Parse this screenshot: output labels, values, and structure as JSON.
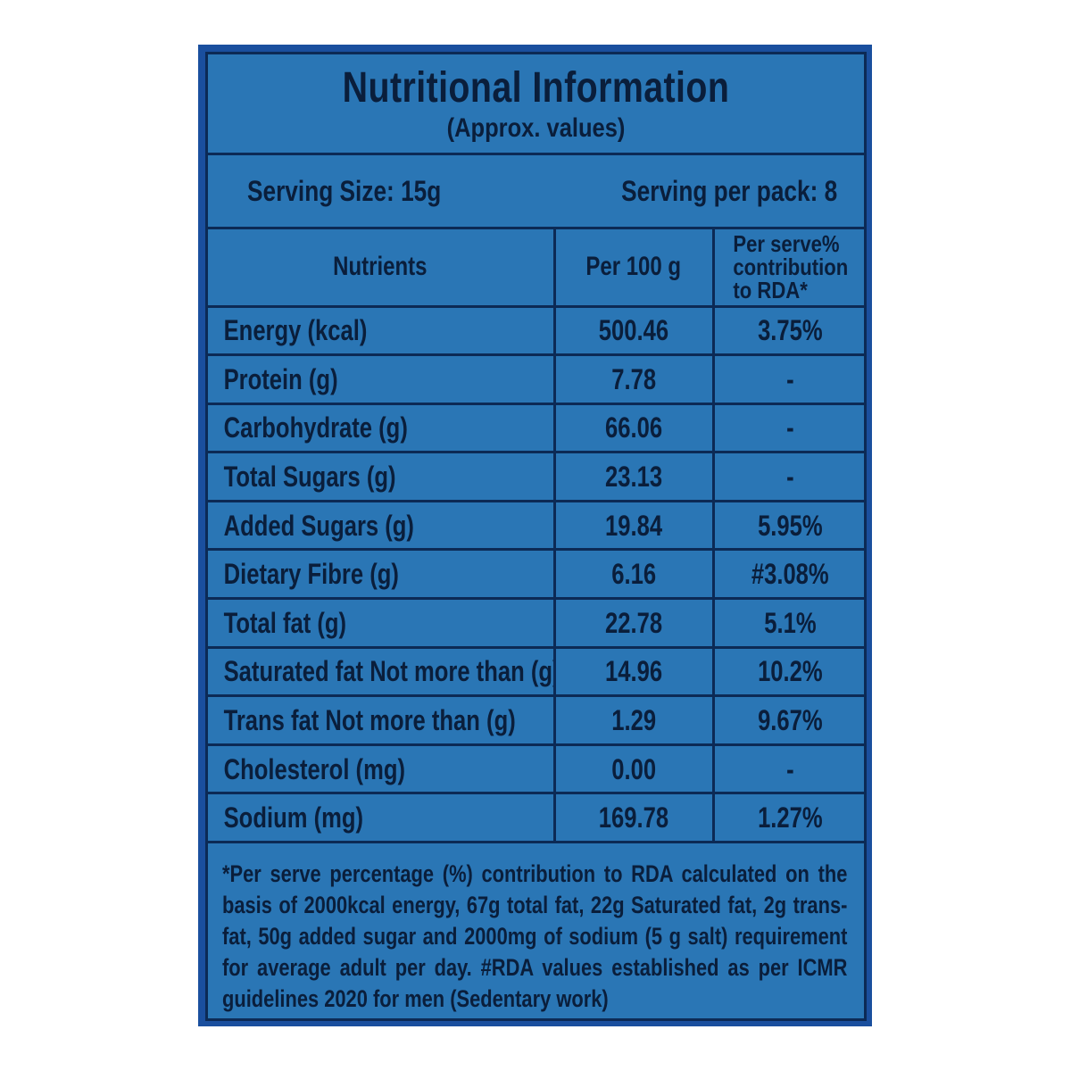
{
  "label": {
    "title": "Nutritional Information",
    "subtitle": "(Approx. values)",
    "serving_size": "Serving Size: 15g",
    "serving_per_pack": "Serving per pack: 8",
    "columns": {
      "nutrients": "Nutrients",
      "per100g": "Per 100 g",
      "rda_line1": "Per serve%",
      "rda_line2": "contribution",
      "rda_line3": "to RDA*"
    },
    "rows": [
      {
        "nutrient": "Energy (kcal)",
        "per100g": "500.46",
        "rda": "3.75%"
      },
      {
        "nutrient": "Protein (g)",
        "per100g": "7.78",
        "rda": "-"
      },
      {
        "nutrient": "Carbohydrate (g)",
        "per100g": "66.06",
        "rda": "-"
      },
      {
        "nutrient": "Total Sugars (g)",
        "per100g": "23.13",
        "rda": "-"
      },
      {
        "nutrient": "Added Sugars (g)",
        "per100g": "19.84",
        "rda": "5.95%"
      },
      {
        "nutrient": "Dietary Fibre (g)",
        "per100g": "6.16",
        "rda": "#3.08%"
      },
      {
        "nutrient": "Total fat (g)",
        "per100g": "22.78",
        "rda": "5.1%"
      },
      {
        "nutrient": "Saturated fat Not more than (g)",
        "per100g": "14.96",
        "rda": "10.2%"
      },
      {
        "nutrient": "Trans fat Not more than (g)",
        "per100g": "1.29",
        "rda": "9.67%"
      },
      {
        "nutrient": "Cholesterol (mg)",
        "per100g": "0.00",
        "rda": "-"
      },
      {
        "nutrient": "Sodium (mg)",
        "per100g": "169.78",
        "rda": "1.27%"
      }
    ],
    "footnote": "*Per serve percentage (%) contribution to RDA calculated on the basis of 2000kcal energy, 67g total fat, 22g Saturated fat, 2g trans-fat, 50g added sugar and 2000mg of sodium (5 g salt) requirement for average adult per day. #RDA values established as per ICMR guidelines 2020 for men (Sedentary work)"
  }
}
